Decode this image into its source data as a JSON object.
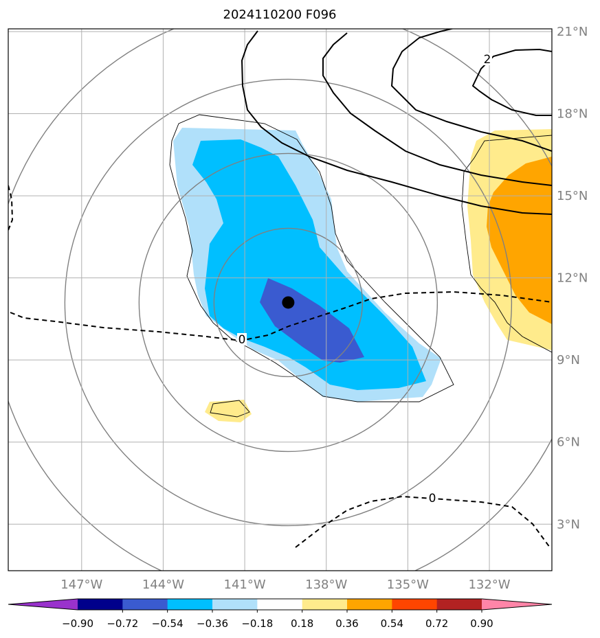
{
  "title": "2024110200 F096",
  "map": {
    "lon_range": [
      -149.7,
      -129.7
    ],
    "lat_range": [
      1.3,
      21.1
    ],
    "lon_ticks": [
      {
        "value": -147,
        "label": "147°W"
      },
      {
        "value": -144,
        "label": "144°W"
      },
      {
        "value": -141,
        "label": "141°W"
      },
      {
        "value": -138,
        "label": "138°W"
      },
      {
        "value": -135,
        "label": "135°W"
      },
      {
        "value": -132,
        "label": "132°W"
      }
    ],
    "lat_ticks": [
      {
        "value": 3,
        "label": "3°N"
      },
      {
        "value": 6,
        "label": "6°N"
      },
      {
        "value": 9,
        "label": "9°N"
      },
      {
        "value": 12,
        "label": "12°N"
      },
      {
        "value": 15,
        "label": "15°N"
      },
      {
        "value": 18,
        "label": "18°N"
      },
      {
        "value": 21,
        "label": "21°N"
      }
    ],
    "grid": true,
    "storm_center": {
      "lon": -139.4,
      "lat": 11.1
    },
    "contour_labels": [
      "0",
      "0",
      "2"
    ],
    "colors": {
      "grid": "#b0b0b0",
      "range_rings": "#808080",
      "frame": "#000000",
      "storm_marker": "#000000"
    }
  },
  "colorbar": {
    "levels": [
      "−0.90",
      "−0.72",
      "−0.54",
      "−0.36",
      "−0.18",
      "0.18",
      "0.36",
      "0.54",
      "0.72",
      "0.90"
    ],
    "colors": [
      "#9932cc",
      "#00008b",
      "#3a5bd0",
      "#00bfff",
      "#b0e0fa",
      "#ffffff",
      "#ffeb8c",
      "#ffa500",
      "#ff4500",
      "#b22222",
      "#ff85a8"
    ],
    "extend": "both"
  }
}
